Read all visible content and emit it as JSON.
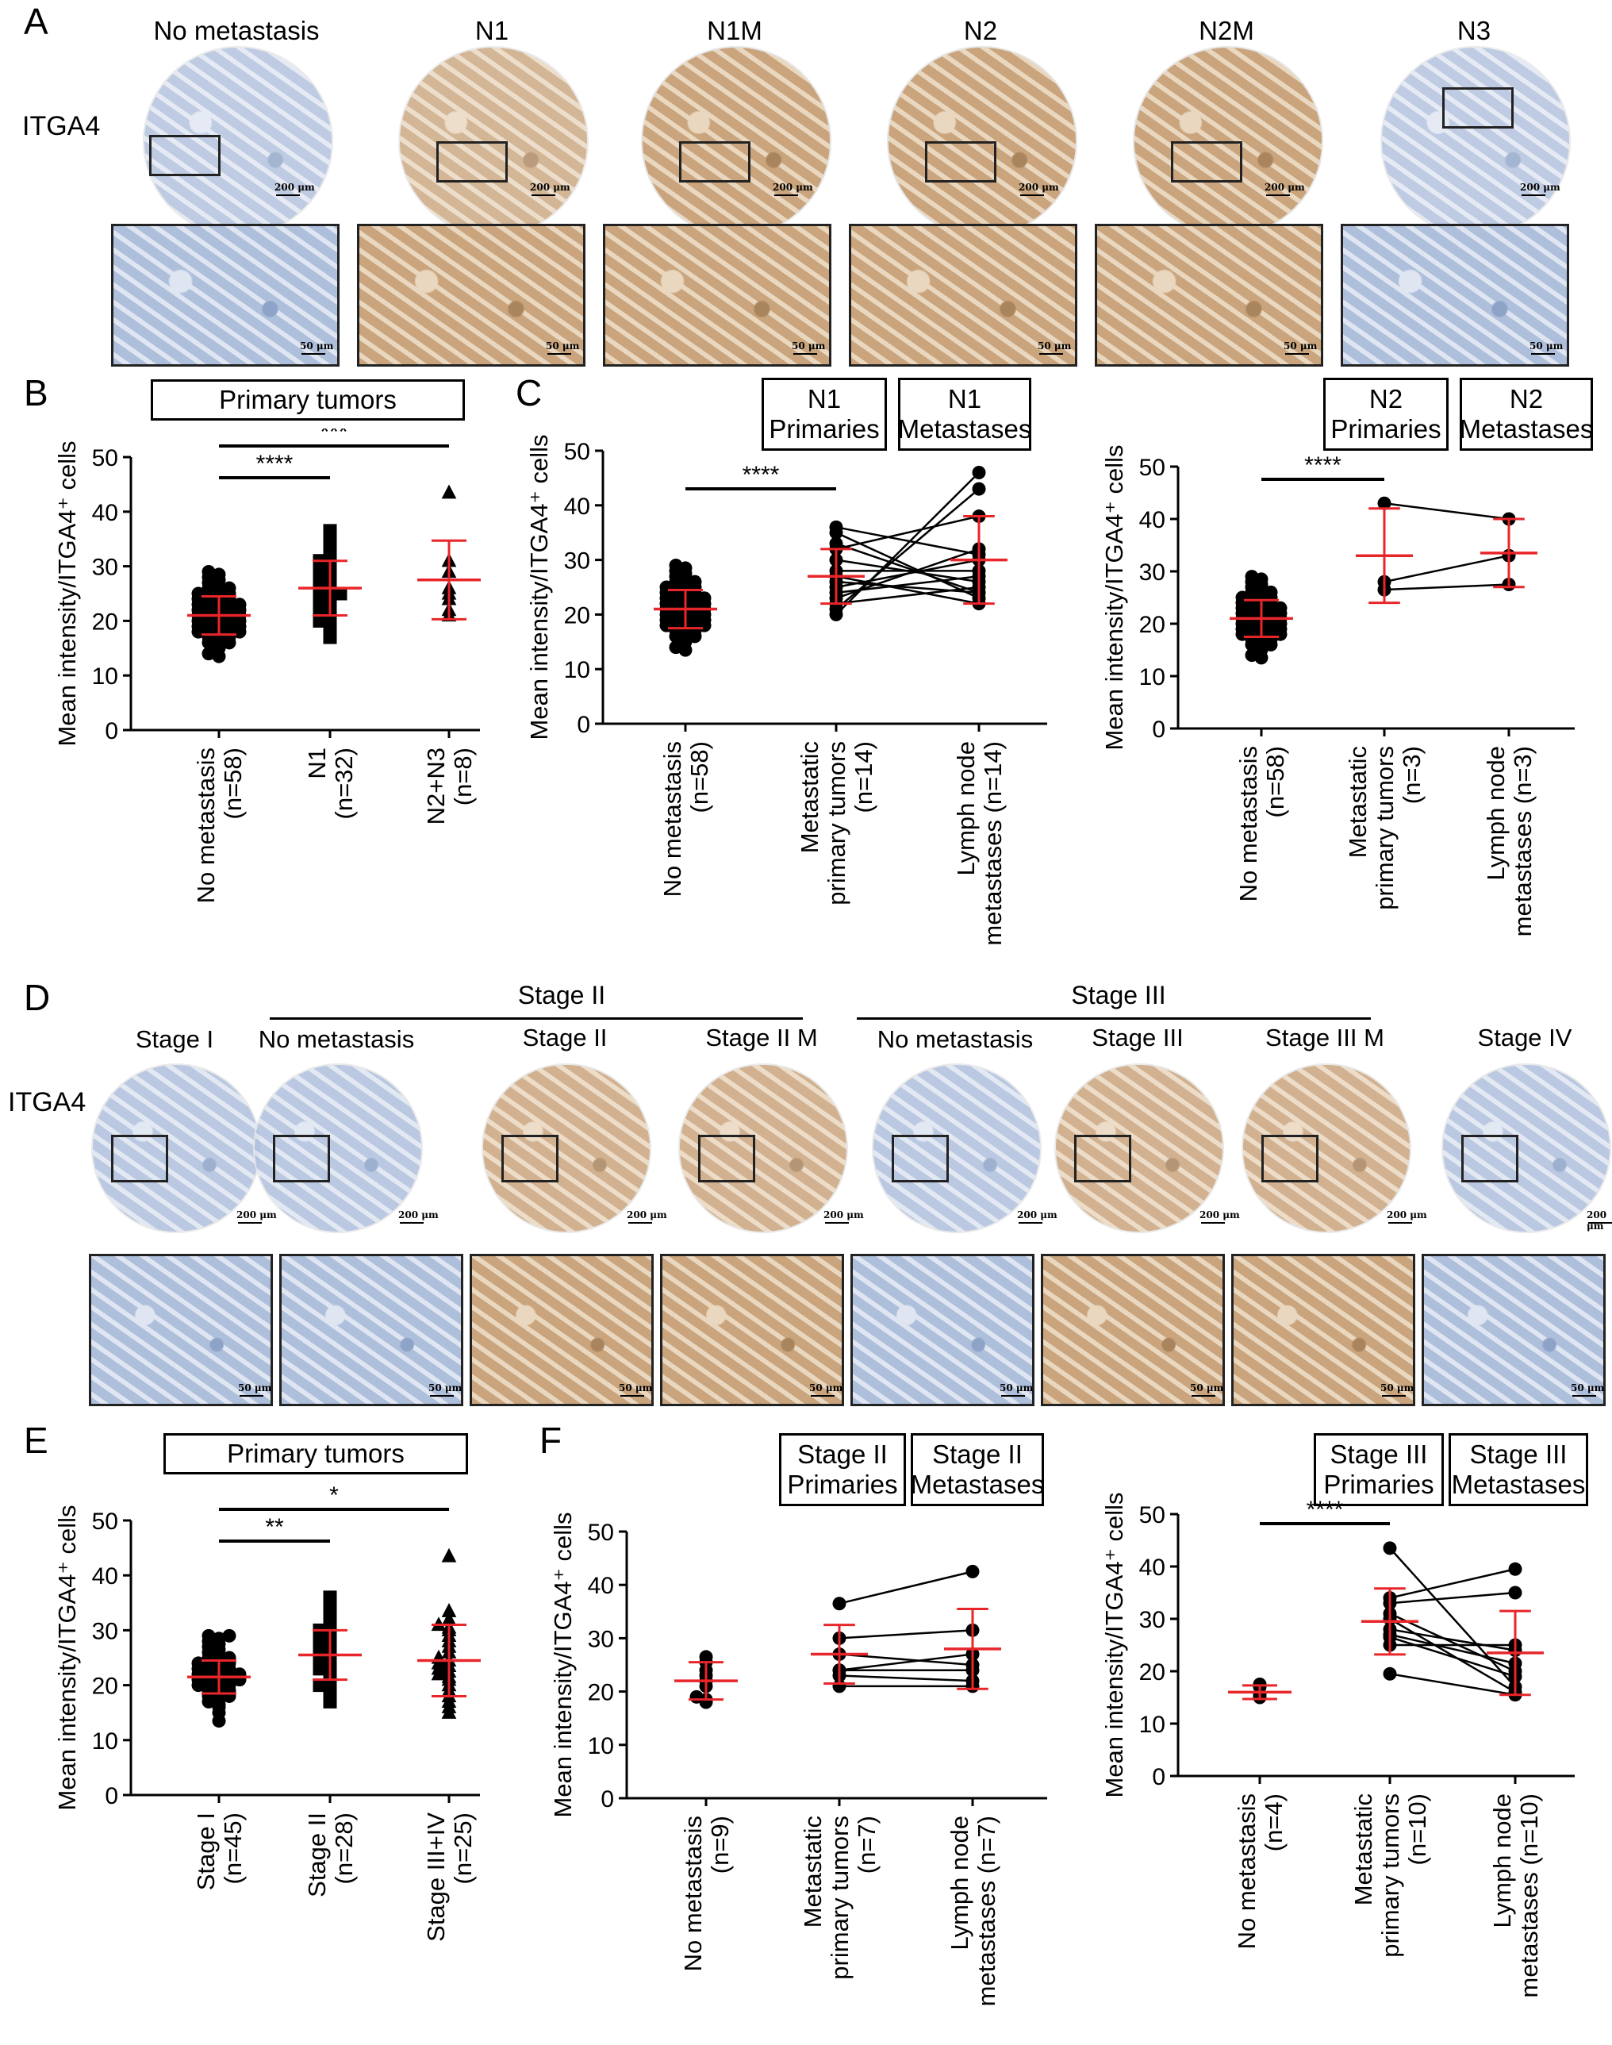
{
  "panelA": {
    "letter": "A",
    "row_label": "ITGA4",
    "columns": [
      "No metastasis",
      "N1",
      "N1M",
      "N2",
      "N2M",
      "N3"
    ],
    "scale_low": "200 μm",
    "scale_high": "50 μm"
  },
  "panelD": {
    "letter": "D",
    "row_label": "ITGA4",
    "group_stage2": "Stage II",
    "group_stage3": "Stage III",
    "columns": [
      "Stage I",
      "No metastasis",
      "Stage II",
      "Stage II M",
      "No metastasis",
      "Stage III",
      "Stage III M",
      "Stage IV"
    ],
    "scale_low": "200 μm",
    "scale_high": "50 μm"
  },
  "panelB": {
    "letter": "B",
    "box": "Primary tumors"
  },
  "panelC": {
    "letter": "C",
    "box1": "N1\nPrimaries",
    "box2": "N1\nMetastases",
    "box3": "N2\nPrimaries",
    "box4": "N2\nMetastases"
  },
  "panelE": {
    "letter": "E",
    "box": "Primary tumors"
  },
  "panelF": {
    "letter": "F",
    "box1": "Stage II\nPrimaries",
    "box2": "Stage II\nMetastases",
    "box3": "Stage III\nPrimaries",
    "box4": "Stage III\nMetastases"
  },
  "colors": {
    "mean_bar": "#e8262a",
    "points": "#000000",
    "stain_brown": "#c8a37a",
    "stain_blue": "#b7c4dc"
  },
  "chart_data": [
    {
      "id": "B",
      "type": "scatter",
      "ylabel": "Mean intensity/ITGA4⁺ cells",
      "ylim": [
        0,
        50
      ],
      "yticks": [
        0,
        10,
        20,
        30,
        40,
        50
      ],
      "categories": [
        [
          "No metastasis",
          "(n=58)"
        ],
        [
          "N1",
          "(n=32)"
        ],
        [
          "N2+N3",
          "(n=8)"
        ]
      ],
      "series": [
        {
          "marker": "circle",
          "mean": 21,
          "sd": 3.5,
          "values": [
            13.5,
            14,
            15,
            15.5,
            16,
            16,
            16.5,
            17,
            17,
            17.5,
            17.5,
            18,
            18,
            18,
            18.5,
            18.5,
            19,
            19,
            19,
            19.5,
            19.5,
            20,
            20,
            20,
            20,
            20.5,
            20.5,
            21,
            21,
            21,
            21,
            21.5,
            21.5,
            22,
            22,
            22,
            22.5,
            22.5,
            23,
            23,
            23,
            23.5,
            23.5,
            24,
            24,
            24.5,
            24.5,
            25,
            25,
            25.5,
            26,
            26,
            26.5,
            27,
            27.5,
            28,
            28.5,
            29
          ]
        },
        {
          "marker": "square",
          "mean": 26,
          "sd": 5,
          "values": [
            17,
            18,
            19,
            19.5,
            20,
            21,
            21.5,
            22,
            22.5,
            23,
            23.5,
            24,
            24.5,
            25,
            25,
            25.5,
            26,
            26.5,
            27,
            27.5,
            28,
            28.5,
            29,
            29.5,
            30,
            30.5,
            31,
            32,
            33,
            34,
            35,
            36.5
          ]
        },
        {
          "marker": "triangle",
          "mean": 27.5,
          "sd": 7.2,
          "values": [
            21,
            22,
            24,
            25,
            26,
            29,
            31,
            43.5
          ]
        }
      ],
      "significance": [
        {
          "from": 0,
          "to": 1,
          "label": "****"
        },
        {
          "from": 0,
          "to": 2,
          "label": "***"
        }
      ]
    },
    {
      "id": "C1",
      "type": "scatter",
      "ylabel": "Mean intensity/ITGA4⁺ cells",
      "ylim": [
        0,
        50
      ],
      "yticks": [
        0,
        10,
        20,
        30,
        40,
        50
      ],
      "categories": [
        [
          "No metastasis",
          "(n=58)"
        ],
        [
          "Metastatic",
          "primary tumors",
          "(n=14)"
        ],
        [
          "Lymph node",
          "metastases (n=14)"
        ]
      ],
      "group0": {
        "mean": 21,
        "sd": 3.5,
        "values": [
          13.5,
          14,
          15,
          15.5,
          16,
          16,
          16.5,
          17,
          17,
          17.5,
          17.5,
          18,
          18,
          18,
          18.5,
          18.5,
          19,
          19,
          19,
          19.5,
          19.5,
          20,
          20,
          20,
          20,
          20.5,
          20.5,
          21,
          21,
          21,
          21,
          21.5,
          21.5,
          22,
          22,
          22,
          22.5,
          22.5,
          23,
          23,
          23,
          23.5,
          23.5,
          24,
          24,
          24.5,
          24.5,
          25,
          25,
          25.5,
          26,
          26,
          26.5,
          27,
          27.5,
          28,
          28.5,
          29
        ]
      },
      "pairs": [
        [
          20,
          46
        ],
        [
          21,
          43
        ],
        [
          22,
          25
        ],
        [
          23,
          32
        ],
        [
          24,
          27
        ],
        [
          25,
          30
        ],
        [
          26,
          24
        ],
        [
          27,
          22
        ],
        [
          28,
          28
        ],
        [
          30,
          26
        ],
        [
          32,
          38
        ],
        [
          33,
          24
        ],
        [
          35,
          23
        ],
        [
          36,
          31
        ]
      ],
      "mean1": 27,
      "sd1": 5,
      "mean2": 30,
      "sd2": 8,
      "significance": [
        {
          "from": 0,
          "to": 1,
          "label": "****"
        }
      ]
    },
    {
      "id": "C2",
      "type": "scatter",
      "ylabel": "Mean intensity/ITGA4⁺ cells",
      "ylim": [
        0,
        50
      ],
      "yticks": [
        0,
        10,
        20,
        30,
        40,
        50
      ],
      "categories": [
        [
          "No metastasis",
          "(n=58)"
        ],
        [
          "Metastatic",
          "primary tumors",
          "(n=3)"
        ],
        [
          "Lymph node",
          "metastases (n=3)"
        ]
      ],
      "group0": {
        "mean": 21,
        "sd": 3.5,
        "values": [
          13.5,
          14,
          15,
          15.5,
          16,
          16,
          16.5,
          17,
          17,
          17.5,
          17.5,
          18,
          18,
          18,
          18.5,
          18.5,
          19,
          19,
          19,
          19.5,
          19.5,
          20,
          20,
          20,
          20,
          20.5,
          20.5,
          21,
          21,
          21,
          21,
          21.5,
          21.5,
          22,
          22,
          22,
          22.5,
          22.5,
          23,
          23,
          23,
          23.5,
          23.5,
          24,
          24,
          24.5,
          24.5,
          25,
          25,
          25.5,
          26,
          26,
          26.5,
          27,
          27.5,
          28,
          28.5,
          29
        ]
      },
      "pairs": [
        [
          43,
          40
        ],
        [
          28,
          33
        ],
        [
          26.5,
          27.5
        ]
      ],
      "mean1": 33,
      "sd1": 9,
      "mean2": 33.5,
      "sd2": 6.5,
      "significance": [
        {
          "from": 0,
          "to": 1,
          "label": "****"
        }
      ]
    },
    {
      "id": "E",
      "type": "scatter",
      "ylabel": "Mean intensity/ITGA4⁺ cells",
      "ylim": [
        0,
        50
      ],
      "yticks": [
        0,
        10,
        20,
        30,
        40,
        50
      ],
      "categories": [
        [
          "Stage I",
          "(n=45)"
        ],
        [
          "Stage II",
          "(n=28)"
        ],
        [
          "Stage III+IV",
          "(n=25)"
        ]
      ],
      "series": [
        {
          "marker": "circle",
          "mean": 21.5,
          "sd": 3,
          "values": [
            13.5,
            15,
            16,
            16.5,
            17,
            17.5,
            18,
            18,
            18.5,
            19,
            19,
            19.5,
            19.5,
            20,
            20,
            20.5,
            20.5,
            21,
            21,
            21,
            21.5,
            21.5,
            22,
            22,
            22,
            22.5,
            22.5,
            23,
            23,
            23.5,
            23.5,
            24,
            24,
            24.5,
            25,
            25,
            25.5,
            26,
            26.5,
            27,
            27.5,
            28,
            28.5,
            29,
            29
          ]
        },
        {
          "marker": "square",
          "mean": 25.5,
          "sd": 4.5,
          "values": [
            17,
            18,
            19,
            19.5,
            20,
            21,
            22,
            22.5,
            23,
            23.5,
            24,
            24.5,
            25,
            25.5,
            26,
            26.5,
            27,
            27.5,
            28,
            28.5,
            29,
            29.5,
            30,
            31,
            32,
            33,
            34.5,
            36
          ]
        },
        {
          "marker": "triangle",
          "mean": 24.5,
          "sd": 6.5,
          "values": [
            15,
            16,
            17,
            18,
            19,
            20,
            21,
            21.5,
            22,
            22.5,
            23,
            23.5,
            24,
            24.5,
            25,
            26,
            27,
            28,
            29,
            30,
            30.5,
            31,
            32,
            33.5,
            43.5
          ]
        }
      ],
      "significance": [
        {
          "from": 0,
          "to": 1,
          "label": "**"
        },
        {
          "from": 0,
          "to": 2,
          "label": "*"
        }
      ]
    },
    {
      "id": "F1",
      "type": "scatter",
      "ylabel": "Mean intensity/ITGA4⁺ cells",
      "ylim": [
        0,
        50
      ],
      "yticks": [
        0,
        10,
        20,
        30,
        40,
        50
      ],
      "categories": [
        [
          "No metastasis",
          "(n=9)"
        ],
        [
          "Metastatic",
          "primary tumors",
          "(n=7)"
        ],
        [
          "Lymph node",
          "metastases (n=7)"
        ]
      ],
      "group0": {
        "mean": 22,
        "sd": 3.5,
        "values": [
          18,
          18.5,
          19,
          21,
          22,
          23,
          24,
          25.5,
          26.5
        ]
      },
      "pairs": [
        [
          36.5,
          42.5
        ],
        [
          30,
          31.5
        ],
        [
          27,
          25
        ],
        [
          24,
          27
        ],
        [
          24,
          24
        ],
        [
          23,
          22
        ],
        [
          21,
          21
        ]
      ],
      "mean1": 27,
      "sd1": 5.5,
      "mean2": 28,
      "sd2": 7.5,
      "significance": []
    },
    {
      "id": "F2",
      "type": "scatter",
      "ylabel": "Mean intensity/ITGA4⁺ cells",
      "ylim": [
        0,
        50
      ],
      "yticks": [
        0,
        10,
        20,
        30,
        40,
        50
      ],
      "categories": [
        [
          "No metastasis",
          "(n=4)"
        ],
        [
          "Metastatic",
          "primary tumors",
          "(n=10)"
        ],
        [
          "Lymph node",
          "metastases (n=10)"
        ]
      ],
      "group0": {
        "mean": 16,
        "sd": 1.3,
        "values": [
          15,
          15.5,
          17,
          17.5
        ]
      },
      "pairs": [
        [
          43.5,
          17
        ],
        [
          34,
          39.5
        ],
        [
          33,
          35
        ],
        [
          31,
          20
        ],
        [
          30,
          16
        ],
        [
          28,
          24
        ],
        [
          27,
          21.5
        ],
        [
          26.5,
          19
        ],
        [
          25,
          25
        ],
        [
          19.5,
          15.5
        ]
      ],
      "mean1": 29.5,
      "sd1": 6.3,
      "mean2": 23.5,
      "sd2": 8,
      "significance": [
        {
          "from": 0,
          "to": 1,
          "label": "****"
        }
      ]
    }
  ]
}
